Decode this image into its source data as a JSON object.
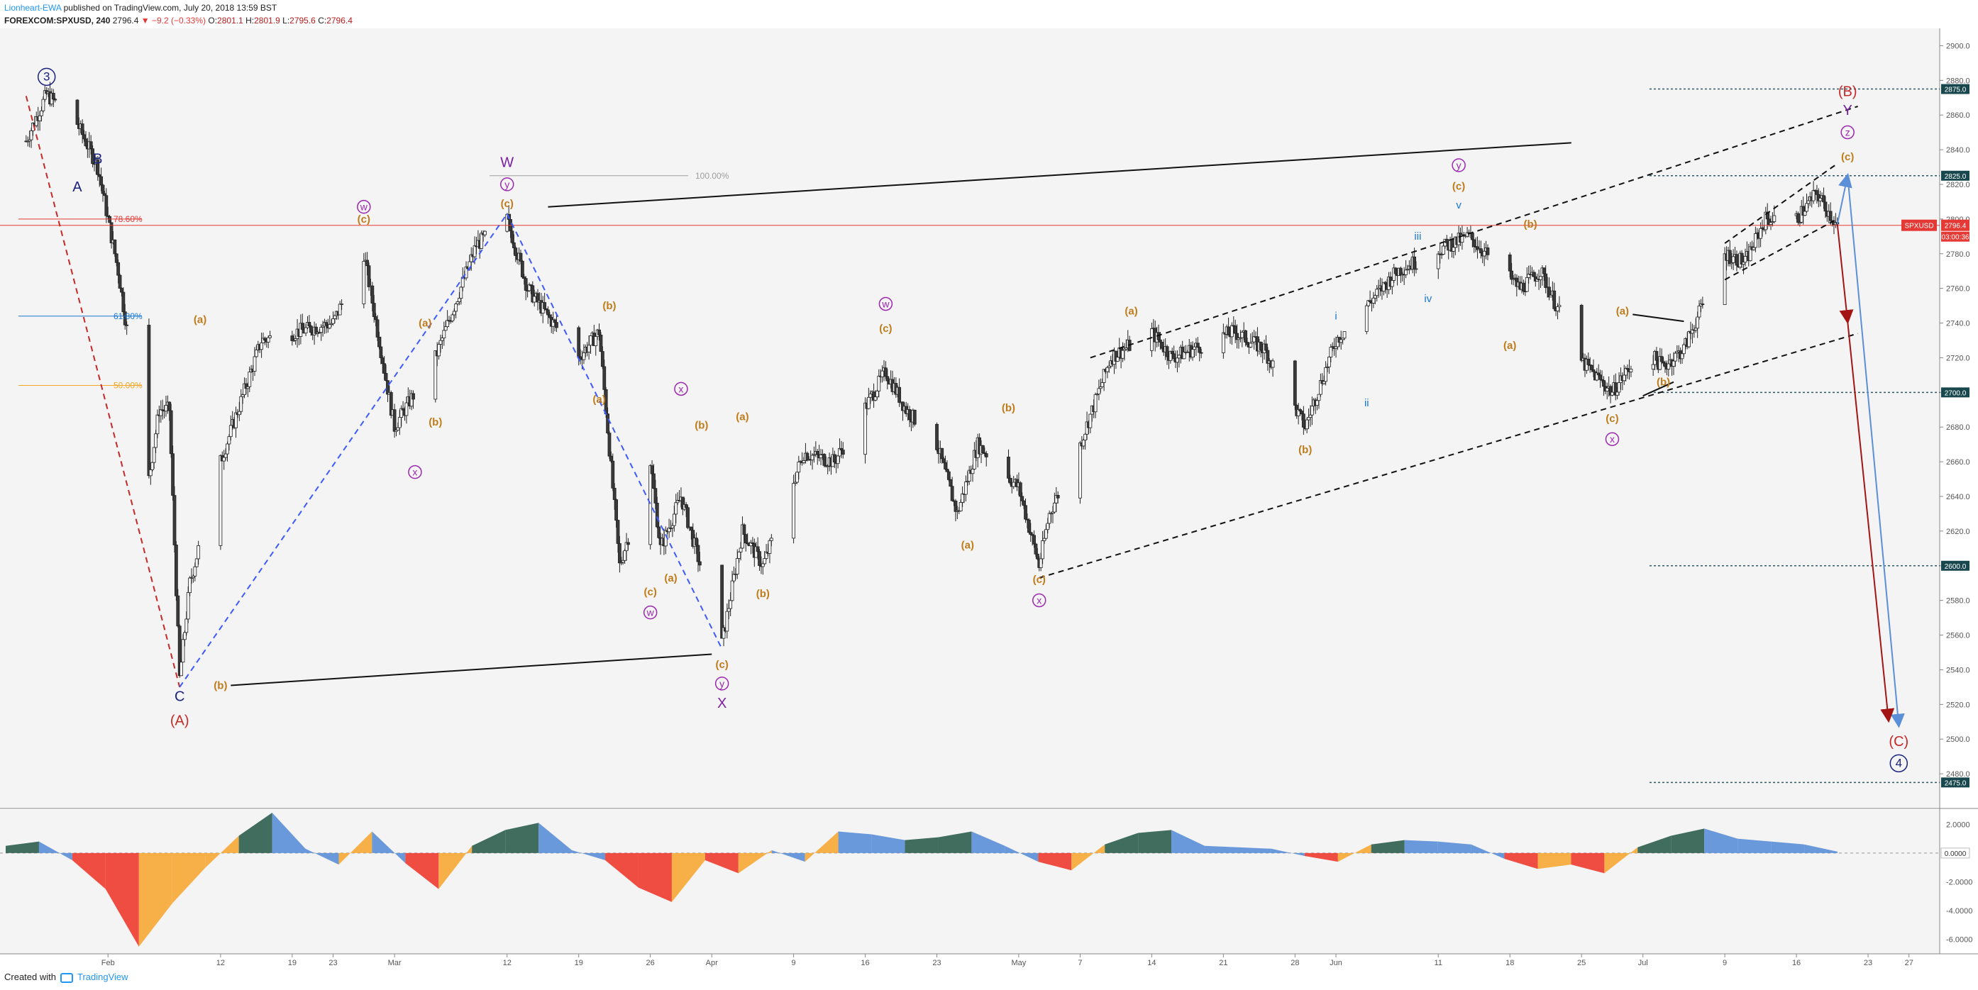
{
  "header": {
    "author": "Lionheart-EWA",
    "published": "published on TradingView.com, July 20, 2018 13:59 BST",
    "symbol": "FOREXCOM:SPXUSD, 240",
    "last": "2796.4",
    "change": "▼ −9.2 (−0.33%)",
    "o_label": "O:",
    "o": "2801.1",
    "h_label": "H:",
    "h": "2801.9",
    "l_label": "L:",
    "l": "2795.6",
    "c_label": "C:",
    "c": "2796.4"
  },
  "footer": {
    "created": "Created with",
    "brand": "TradingView",
    "logo_icon": "tradingview-logo-icon"
  },
  "colors": {
    "up": "#f5f5f5",
    "down": "#3a3a3a",
    "wick": "#222222",
    "red": "#e53935",
    "blue": "#1976d2",
    "orange": "#c07c1a",
    "purple": "#9c27b0",
    "navy": "#1a237e",
    "price_tag": "#e53935",
    "level_tag": "#18484e",
    "osc_green": "#2e5e4e",
    "osc_blue": "#5b8fd8",
    "osc_red": "#ef3b2f",
    "osc_orange": "#f7a735"
  },
  "chart_data": {
    "type": "candlestick",
    "symbol": "SPXUSD",
    "timeframe": "240",
    "ylim": [
      2460,
      2910
    ],
    "y_ticks": [
      "2900.0",
      "2880.0",
      "2860.0",
      "2840.0",
      "2820.0",
      "2800.0",
      "2780.0",
      "2760.0",
      "2740.0",
      "2720.0",
      "2700.0",
      "2680.0",
      "2660.0",
      "2640.0",
      "2620.0",
      "2600.0",
      "2580.0",
      "2560.0",
      "2540.0",
      "2520.0",
      "2500.0",
      "2480.0"
    ],
    "x_ticks": [
      {
        "label": "Feb",
        "date": "2018-02-01"
      },
      {
        "label": "12",
        "date": "2018-02-12"
      },
      {
        "label": "19",
        "date": "2018-02-19"
      },
      {
        "label": "23",
        "date": "2018-02-23"
      },
      {
        "label": "Mar",
        "date": "2018-03-01"
      },
      {
        "label": "12",
        "date": "2018-03-12"
      },
      {
        "label": "19",
        "date": "2018-03-19"
      },
      {
        "label": "26",
        "date": "2018-03-26"
      },
      {
        "label": "Apr",
        "date": "2018-04-01"
      },
      {
        "label": "9",
        "date": "2018-04-09"
      },
      {
        "label": "16",
        "date": "2018-04-16"
      },
      {
        "label": "23",
        "date": "2018-04-23"
      },
      {
        "label": "May",
        "date": "2018-05-01"
      },
      {
        "label": "7",
        "date": "2018-05-07"
      },
      {
        "label": "14",
        "date": "2018-05-14"
      },
      {
        "label": "21",
        "date": "2018-05-21"
      },
      {
        "label": "28",
        "date": "2018-05-28"
      },
      {
        "label": "Jun",
        "date": "2018-06-01"
      },
      {
        "label": "11",
        "date": "2018-06-11"
      },
      {
        "label": "18",
        "date": "2018-06-18"
      },
      {
        "label": "25",
        "date": "2018-06-25"
      },
      {
        "label": "Jul",
        "date": "2018-07-01"
      },
      {
        "label": "9",
        "date": "2018-07-09"
      },
      {
        "label": "16",
        "date": "2018-07-16"
      },
      {
        "label": "23",
        "date": "2018-07-23"
      },
      {
        "label": "27",
        "date": "2018-07-27"
      }
    ],
    "price_path": [
      [
        "2018-01-24",
        2845
      ],
      [
        "2018-01-26",
        2872
      ],
      [
        "2018-01-29",
        2855
      ],
      [
        "2018-01-31",
        2830
      ],
      [
        "2018-02-02",
        2770
      ],
      [
        "2018-02-05",
        2650
      ],
      [
        "2018-02-06",
        2690
      ],
      [
        "2018-02-07",
        2690
      ],
      [
        "2018-02-08",
        2535
      ],
      [
        "2018-02-09",
        2590
      ],
      [
        "2018-02-12",
        2660
      ],
      [
        "2018-02-16",
        2730
      ],
      [
        "2018-02-23",
        2740
      ],
      [
        "2018-02-26",
        2780
      ],
      [
        "2018-03-01",
        2680
      ],
      [
        "2018-03-02",
        2690
      ],
      [
        "2018-03-05",
        2720
      ],
      [
        "2018-03-09",
        2785
      ],
      [
        "2018-03-12",
        2800
      ],
      [
        "2018-03-14",
        2760
      ],
      [
        "2018-03-19",
        2720
      ],
      [
        "2018-03-21",
        2735
      ],
      [
        "2018-03-23",
        2600
      ],
      [
        "2018-03-26",
        2660
      ],
      [
        "2018-03-27",
        2610
      ],
      [
        "2018-03-29",
        2640
      ],
      [
        "2018-04-02",
        2555
      ],
      [
        "2018-04-04",
        2620
      ],
      [
        "2018-04-06",
        2600
      ],
      [
        "2018-04-10",
        2665
      ],
      [
        "2018-04-13",
        2660
      ],
      [
        "2018-04-18",
        2712
      ],
      [
        "2018-04-20",
        2690
      ],
      [
        "2018-04-23",
        2670
      ],
      [
        "2018-04-25",
        2630
      ],
      [
        "2018-04-27",
        2670
      ],
      [
        "2018-05-01",
        2645
      ],
      [
        "2018-05-03",
        2600
      ],
      [
        "2018-05-04",
        2630
      ],
      [
        "2018-05-07",
        2670
      ],
      [
        "2018-05-10",
        2720
      ],
      [
        "2018-05-14",
        2735
      ],
      [
        "2018-05-16",
        2720
      ],
      [
        "2018-05-22",
        2735
      ],
      [
        "2018-05-25",
        2725
      ],
      [
        "2018-05-29",
        2680
      ],
      [
        "2018-06-01",
        2730
      ],
      [
        "2018-06-07",
        2770
      ],
      [
        "2018-06-12",
        2785
      ],
      [
        "2018-06-14",
        2790
      ],
      [
        "2018-06-19",
        2760
      ],
      [
        "2018-06-21",
        2770
      ],
      [
        "2018-06-25",
        2718
      ],
      [
        "2018-06-28",
        2700
      ],
      [
        "2018-07-01",
        2725
      ],
      [
        "2018-07-03",
        2715
      ],
      [
        "2018-07-05",
        2725
      ],
      [
        "2018-07-09",
        2780
      ],
      [
        "2018-07-11",
        2775
      ],
      [
        "2018-07-13",
        2800
      ],
      [
        "2018-07-16",
        2800
      ],
      [
        "2018-07-18",
        2815
      ],
      [
        "2018-07-20",
        2796
      ]
    ],
    "last_price": {
      "value": 2796.4,
      "label": "SPXUSD",
      "text": "2796.4",
      "countdown": "03:00:36"
    },
    "levels": [
      {
        "value": 2875,
        "label": "2875.0"
      },
      {
        "value": 2825,
        "label": "2825.0"
      },
      {
        "value": 2700,
        "label": "2700.0"
      },
      {
        "value": 2600,
        "label": "2600.0"
      },
      {
        "value": 2475,
        "label": "2475.0"
      }
    ],
    "fib_levels": [
      {
        "label": "78.60%",
        "value": 2800,
        "color": "#e53935"
      },
      {
        "label": "61.80%",
        "value": 2744,
        "color": "#1976d2"
      },
      {
        "label": "50.00%",
        "value": 2704,
        "color": "#f5a623"
      },
      {
        "label": "100.00%",
        "value": 2825,
        "color": "#9e9e9e"
      }
    ],
    "wave_labels": [
      {
        "t": "3",
        "date": "2018-01-26",
        "y": 2880,
        "color": "#1a237e",
        "circle": true
      },
      {
        "t": "B",
        "date": "2018-01-31",
        "y": 2832,
        "color": "#1a237e"
      },
      {
        "t": "A",
        "date": "2018-01-29",
        "y": 2816,
        "color": "#1a237e"
      },
      {
        "t": "C",
        "date": "2018-02-08",
        "y": 2522,
        "color": "#1a237e"
      },
      {
        "t": "(A)",
        "date": "2018-02-08",
        "y": 2508,
        "color": "#c62828"
      },
      {
        "t": "(a)",
        "date": "2018-02-10",
        "y": 2740,
        "color": "#c07c1a"
      },
      {
        "t": "(b)",
        "date": "2018-02-12",
        "y": 2529,
        "color": "#c07c1a"
      },
      {
        "t": "w",
        "date": "2018-02-26",
        "y": 2805,
        "color": "#9c27b0",
        "circle": true
      },
      {
        "t": "(c)",
        "date": "2018-02-26",
        "y": 2798,
        "color": "#c07c1a"
      },
      {
        "t": "(a)",
        "date": "2018-03-04",
        "y": 2738,
        "color": "#c07c1a"
      },
      {
        "t": "(b)",
        "date": "2018-03-05",
        "y": 2681,
        "color": "#c07c1a"
      },
      {
        "t": "x",
        "date": "2018-03-03",
        "y": 2652,
        "color": "#9c27b0",
        "circle": true
      },
      {
        "t": "W",
        "date": "2018-03-12",
        "y": 2830,
        "color": "#7b1fa2"
      },
      {
        "t": "y",
        "date": "2018-03-12",
        "y": 2818,
        "color": "#9c27b0",
        "circle": true
      },
      {
        "t": "(c)",
        "date": "2018-03-12",
        "y": 2807,
        "color": "#c07c1a"
      },
      {
        "t": "(b)",
        "date": "2018-03-22",
        "y": 2748,
        "color": "#c07c1a"
      },
      {
        "t": "(a)",
        "date": "2018-03-21",
        "y": 2694,
        "color": "#c07c1a"
      },
      {
        "t": "x",
        "date": "2018-03-29",
        "y": 2700,
        "color": "#9c27b0",
        "circle": true
      },
      {
        "t": "(b)",
        "date": "2018-03-31",
        "y": 2679,
        "color": "#c07c1a"
      },
      {
        "t": "(c)",
        "date": "2018-03-26",
        "y": 2583,
        "color": "#c07c1a"
      },
      {
        "t": "w",
        "date": "2018-03-26",
        "y": 2571,
        "color": "#9c27b0",
        "circle": true
      },
      {
        "t": "(a)",
        "date": "2018-03-28",
        "y": 2591,
        "color": "#c07c1a"
      },
      {
        "t": "(c)",
        "date": "2018-04-02",
        "y": 2541,
        "color": "#c07c1a"
      },
      {
        "t": "y",
        "date": "2018-04-02",
        "y": 2530,
        "color": "#9c27b0",
        "circle": true
      },
      {
        "t": "X",
        "date": "2018-04-02",
        "y": 2518,
        "color": "#7b1fa2"
      },
      {
        "t": "(a)",
        "date": "2018-04-04",
        "y": 2684,
        "color": "#c07c1a"
      },
      {
        "t": "(b)",
        "date": "2018-04-06",
        "y": 2582,
        "color": "#c07c1a"
      },
      {
        "t": "w",
        "date": "2018-04-18",
        "y": 2749,
        "color": "#9c27b0",
        "circle": true
      },
      {
        "t": "(c)",
        "date": "2018-04-18",
        "y": 2735,
        "color": "#c07c1a"
      },
      {
        "t": "(a)",
        "date": "2018-04-26",
        "y": 2610,
        "color": "#c07c1a"
      },
      {
        "t": "(b)",
        "date": "2018-04-30",
        "y": 2689,
        "color": "#c07c1a"
      },
      {
        "t": "(c)",
        "date": "2018-05-03",
        "y": 2590,
        "color": "#c07c1a"
      },
      {
        "t": "x",
        "date": "2018-05-03",
        "y": 2578,
        "color": "#9c27b0",
        "circle": true
      },
      {
        "t": "(a)",
        "date": "2018-05-12",
        "y": 2745,
        "color": "#c07c1a"
      },
      {
        "t": "(b)",
        "date": "2018-05-29",
        "y": 2665,
        "color": "#c07c1a"
      },
      {
        "t": "i",
        "date": "2018-06-01",
        "y": 2742,
        "color": "#1976d2"
      },
      {
        "t": "ii",
        "date": "2018-06-04",
        "y": 2692,
        "color": "#1976d2"
      },
      {
        "t": "iii",
        "date": "2018-06-09",
        "y": 2788,
        "color": "#1976d2"
      },
      {
        "t": "iv",
        "date": "2018-06-10",
        "y": 2752,
        "color": "#1976d2"
      },
      {
        "t": "v",
        "date": "2018-06-13",
        "y": 2806,
        "color": "#1976d2"
      },
      {
        "t": "y",
        "date": "2018-06-13",
        "y": 2829,
        "color": "#9c27b0",
        "circle": true
      },
      {
        "t": "(c)",
        "date": "2018-06-13",
        "y": 2817,
        "color": "#c07c1a"
      },
      {
        "t": "(b)",
        "date": "2018-06-20",
        "y": 2795,
        "color": "#c07c1a"
      },
      {
        "t": "(a)",
        "date": "2018-06-18",
        "y": 2725,
        "color": "#c07c1a"
      },
      {
        "t": "(a)",
        "date": "2018-06-29",
        "y": 2745,
        "color": "#c07c1a"
      },
      {
        "t": "(c)",
        "date": "2018-06-28",
        "y": 2683,
        "color": "#c07c1a"
      },
      {
        "t": "x",
        "date": "2018-06-28",
        "y": 2671,
        "color": "#9c27b0",
        "circle": true
      },
      {
        "t": "(b)",
        "date": "2018-07-03",
        "y": 2704,
        "color": "#c07c1a"
      },
      {
        "t": "(B)",
        "date": "2018-07-21",
        "y": 2871,
        "color": "#c62828"
      },
      {
        "t": "Y",
        "date": "2018-07-21",
        "y": 2860,
        "color": "#7b1fa2"
      },
      {
        "t": "z",
        "date": "2018-07-21",
        "y": 2848,
        "color": "#9c27b0",
        "circle": true
      },
      {
        "t": "(c)",
        "date": "2018-07-21",
        "y": 2834,
        "color": "#c07c1a"
      },
      {
        "t": "(C)",
        "date": "2018-07-26",
        "y": 2496,
        "color": "#c62828"
      },
      {
        "t": "4",
        "date": "2018-07-26",
        "y": 2484,
        "color": "#1a237e",
        "circle": true
      }
    ],
    "trend_lines": [
      {
        "from": [
          "2018-02-13",
          2531
        ],
        "to": [
          "2018-04-01",
          2549
        ],
        "style": "solid",
        "color": "#111111"
      },
      {
        "from": [
          "2018-03-16",
          2807
        ],
        "to": [
          "2018-06-24",
          2844
        ],
        "style": "solid",
        "color": "#111111"
      },
      {
        "from": [
          "2018-05-08",
          2720
        ],
        "to": [
          "2018-07-22",
          2865
        ],
        "style": "dashed",
        "color": "#111111"
      },
      {
        "from": [
          "2018-05-03",
          2593
        ],
        "to": [
          "2018-07-22",
          2734
        ],
        "style": "dashed",
        "color": "#111111"
      },
      {
        "from": [
          "2018-07-09",
          2786
        ],
        "to": [
          "2018-07-20",
          2832
        ],
        "style": "dashed",
        "color": "#111111"
      },
      {
        "from": [
          "2018-07-09",
          2765
        ],
        "to": [
          "2018-07-20",
          2800
        ],
        "style": "dashed",
        "color": "#111111"
      },
      {
        "from": [
          "2018-06-30",
          2745
        ],
        "to": [
          "2018-07-05",
          2741
        ],
        "style": "solid",
        "color": "#111111"
      },
      {
        "from": [
          "2018-07-01",
          2698
        ],
        "to": [
          "2018-07-04",
          2706
        ],
        "style": "solid",
        "color": "#111111"
      },
      {
        "from": [
          "2018-01-24",
          2871
        ],
        "to": [
          "2018-02-08",
          2530
        ],
        "style": "dashed",
        "color": "#c62828"
      },
      {
        "from": [
          "2018-02-08",
          2530
        ],
        "to": [
          "2018-03-12",
          2803
        ],
        "style": "dashed",
        "color": "#3d5afe"
      },
      {
        "from": [
          "2018-03-12",
          2803
        ],
        "to": [
          "2018-04-02",
          2552
        ],
        "style": "dashed",
        "color": "#3d5afe"
      }
    ],
    "arrows": [
      {
        "from": [
          "2018-07-20",
          2797
        ],
        "to": [
          "2018-07-21",
          2825
        ],
        "color": "#5b8fd8"
      },
      {
        "from": [
          "2018-07-21",
          2825
        ],
        "to": [
          "2018-07-26",
          2508
        ],
        "color": "#5b8fd8"
      },
      {
        "from": [
          "2018-07-20",
          2797
        ],
        "to": [
          "2018-07-21",
          2741
        ],
        "color": "#a31515"
      },
      {
        "from": [
          "2018-07-21",
          2741
        ],
        "to": [
          "2018-07-25",
          2511
        ],
        "color": "#a31515"
      }
    ],
    "oscillator": {
      "ylim": [
        -7,
        3
      ],
      "y_ticks": [
        "2.0000",
        "0.0000",
        "-2.0000",
        "-4.0000",
        "-6.0000"
      ],
      "zero_label": "0.0000",
      "values_approx": [
        0.5,
        0.8,
        -0.5,
        -2.5,
        -6.5,
        -3.5,
        -1.0,
        1.2,
        2.8,
        0.3,
        -0.8,
        1.5,
        -0.7,
        -2.5,
        0.5,
        1.6,
        2.1,
        0.2,
        -0.5,
        -2.4,
        -3.4,
        -0.5,
        -1.4,
        0.2,
        -0.6,
        1.5,
        1.3,
        0.9,
        1.1,
        1.5,
        0.5,
        -0.6,
        -1.2,
        0.6,
        1.4,
        1.6,
        0.5,
        0.4,
        0.3,
        -0.2,
        -0.6,
        0.6,
        0.9,
        0.8,
        0.6,
        -0.4,
        -1.1,
        -0.8,
        -1.4,
        0.4,
        1.2,
        1.7,
        1.0,
        0.8,
        0.6,
        0.1
      ]
    }
  }
}
